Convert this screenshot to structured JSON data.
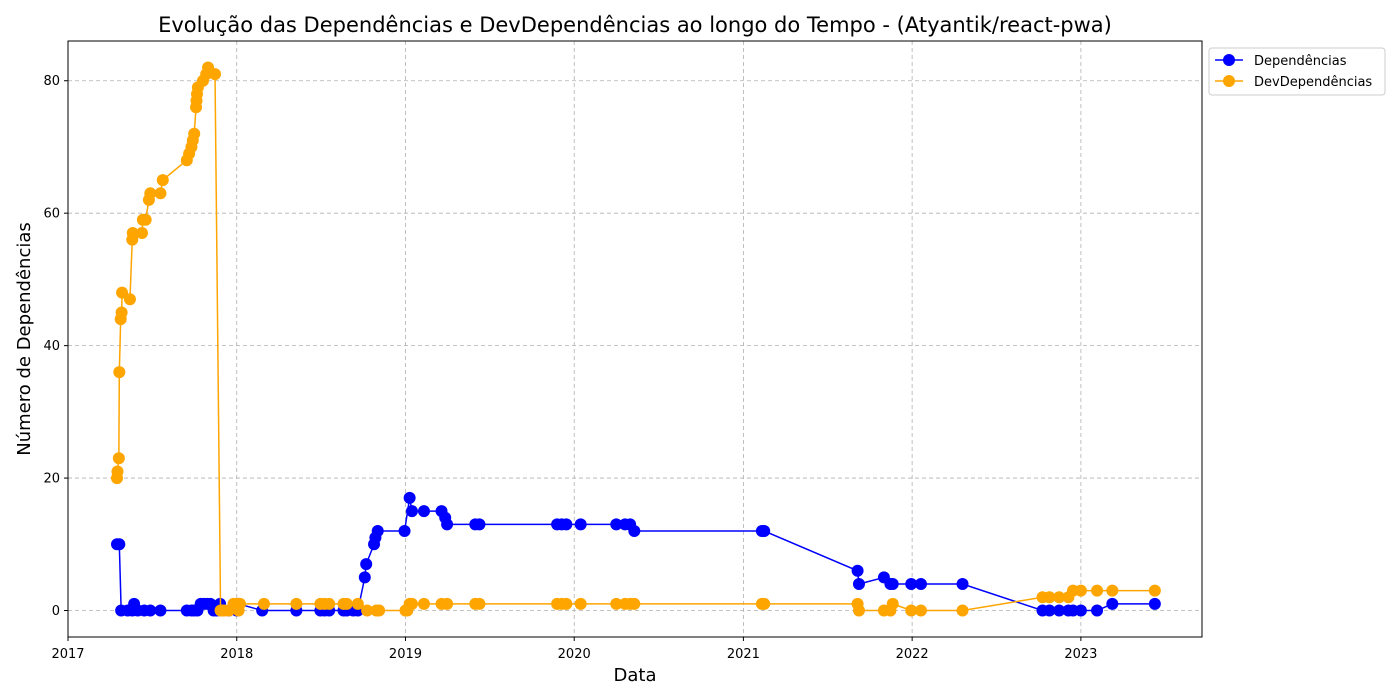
{
  "chart_data": {
    "type": "line",
    "title": "Evolução das Dependências e DevDependências ao longo do Tempo - (Atyantik/react-pwa)",
    "xlabel": "Data",
    "ylabel": "Número de Dependências",
    "xlim": [
      "2017-01-01",
      "2023-09-20"
    ],
    "ylim": [
      -4,
      86
    ],
    "x_ticks": [
      "2017",
      "2018",
      "2019",
      "2020",
      "2021",
      "2022",
      "2023"
    ],
    "y_ticks": [
      0,
      20,
      40,
      60,
      80
    ],
    "grid": true,
    "legend_position": "top-right (outside plot)",
    "series": [
      {
        "name": "Dependências",
        "color": "#0000ff",
        "points": [
          [
            "2017-04-17",
            10
          ],
          [
            "2017-04-22",
            10
          ],
          [
            "2017-04-26",
            0
          ],
          [
            "2017-05-10",
            0
          ],
          [
            "2017-05-20",
            0
          ],
          [
            "2017-05-24",
            1
          ],
          [
            "2017-06-01",
            0
          ],
          [
            "2017-06-15",
            0
          ],
          [
            "2017-06-28",
            0
          ],
          [
            "2017-07-20",
            0
          ],
          [
            "2017-09-15",
            0
          ],
          [
            "2017-09-25",
            0
          ],
          [
            "2017-10-01",
            0
          ],
          [
            "2017-10-08",
            0
          ],
          [
            "2017-10-15",
            1
          ],
          [
            "2017-10-22",
            1
          ],
          [
            "2017-10-29",
            1
          ],
          [
            "2017-11-05",
            1
          ],
          [
            "2017-11-12",
            0
          ],
          [
            "2017-11-19",
            0
          ],
          [
            "2017-11-26",
            1
          ],
          [
            "2017-12-15",
            0
          ],
          [
            "2018-01-01",
            0
          ],
          [
            "2018-01-05",
            1
          ],
          [
            "2018-02-25",
            0
          ],
          [
            "2018-05-10",
            0
          ],
          [
            "2018-07-01",
            0
          ],
          [
            "2018-07-10",
            0
          ],
          [
            "2018-07-20",
            0
          ],
          [
            "2018-08-20",
            0
          ],
          [
            "2018-08-27",
            0
          ],
          [
            "2018-09-10",
            0
          ],
          [
            "2018-09-20",
            0
          ],
          [
            "2018-10-05",
            5
          ],
          [
            "2018-10-08",
            7
          ],
          [
            "2018-10-25",
            10
          ],
          [
            "2018-10-28",
            11
          ],
          [
            "2018-11-02",
            12
          ],
          [
            "2018-12-30",
            12
          ],
          [
            "2019-01-10",
            17
          ],
          [
            "2019-01-15",
            15
          ],
          [
            "2019-02-10",
            15
          ],
          [
            "2019-03-20",
            15
          ],
          [
            "2019-03-28",
            14
          ],
          [
            "2019-04-01",
            13
          ],
          [
            "2019-06-01",
            13
          ],
          [
            "2019-06-10",
            13
          ],
          [
            "2019-11-25",
            13
          ],
          [
            "2019-12-05",
            13
          ],
          [
            "2019-12-15",
            13
          ],
          [
            "2020-01-15",
            13
          ],
          [
            "2020-04-01",
            13
          ],
          [
            "2020-04-20",
            13
          ],
          [
            "2020-05-01",
            13
          ],
          [
            "2020-05-10",
            12
          ],
          [
            "2021-02-10",
            12
          ],
          [
            "2021-02-15",
            12
          ],
          [
            "2021-09-05",
            6
          ],
          [
            "2021-09-08",
            4
          ],
          [
            "2021-11-01",
            5
          ],
          [
            "2021-11-15",
            4
          ],
          [
            "2021-11-20",
            4
          ],
          [
            "2021-12-30",
            4
          ],
          [
            "2022-01-20",
            4
          ],
          [
            "2022-04-20",
            4
          ],
          [
            "2022-10-10",
            0
          ],
          [
            "2022-10-25",
            0
          ],
          [
            "2022-11-15",
            0
          ],
          [
            "2022-12-05",
            0
          ],
          [
            "2022-12-15",
            0
          ],
          [
            "2023-01-01",
            0
          ],
          [
            "2023-02-05",
            0
          ],
          [
            "2023-03-10",
            1
          ],
          [
            "2023-06-10",
            1
          ]
        ]
      },
      {
        "name": "DevDependências",
        "color": "#ffa500",
        "points": [
          [
            "2017-04-17",
            20
          ],
          [
            "2017-04-18",
            21
          ],
          [
            "2017-04-21",
            23
          ],
          [
            "2017-04-22",
            36
          ],
          [
            "2017-04-25",
            44
          ],
          [
            "2017-04-27",
            45
          ],
          [
            "2017-04-28",
            48
          ],
          [
            "2017-05-15",
            47
          ],
          [
            "2017-05-20",
            56
          ],
          [
            "2017-05-21",
            57
          ],
          [
            "2017-06-10",
            57
          ],
          [
            "2017-06-12",
            59
          ],
          [
            "2017-06-18",
            59
          ],
          [
            "2017-06-25",
            62
          ],
          [
            "2017-06-28",
            63
          ],
          [
            "2017-07-20",
            63
          ],
          [
            "2017-07-25",
            65
          ],
          [
            "2017-09-15",
            68
          ],
          [
            "2017-09-20",
            69
          ],
          [
            "2017-09-25",
            70
          ],
          [
            "2017-09-28",
            71
          ],
          [
            "2017-10-01",
            72
          ],
          [
            "2017-10-05",
            76
          ],
          [
            "2017-10-06",
            77
          ],
          [
            "2017-10-07",
            78
          ],
          [
            "2017-10-09",
            79
          ],
          [
            "2017-10-20",
            80
          ],
          [
            "2017-10-27",
            81
          ],
          [
            "2017-10-31",
            82
          ],
          [
            "2017-11-15",
            81
          ],
          [
            "2017-11-27",
            0
          ],
          [
            "2017-12-01",
            0
          ],
          [
            "2017-12-05",
            0
          ],
          [
            "2017-12-15",
            0
          ],
          [
            "2017-12-25",
            1
          ],
          [
            "2018-01-01",
            1
          ],
          [
            "2018-01-05",
            0
          ],
          [
            "2018-01-08",
            1
          ],
          [
            "2018-03-01",
            1
          ],
          [
            "2018-05-10",
            1
          ],
          [
            "2018-07-01",
            1
          ],
          [
            "2018-07-10",
            1
          ],
          [
            "2018-07-20",
            1
          ],
          [
            "2018-08-20",
            1
          ],
          [
            "2018-08-27",
            1
          ],
          [
            "2018-09-20",
            1
          ],
          [
            "2018-10-10",
            0
          ],
          [
            "2018-10-30",
            0
          ],
          [
            "2018-11-05",
            0
          ],
          [
            "2019-01-01",
            0
          ],
          [
            "2019-01-05",
            0
          ],
          [
            "2019-01-10",
            1
          ],
          [
            "2019-01-15",
            1
          ],
          [
            "2019-02-10",
            1
          ],
          [
            "2019-03-20",
            1
          ],
          [
            "2019-04-01",
            1
          ],
          [
            "2019-06-01",
            1
          ],
          [
            "2019-06-10",
            1
          ],
          [
            "2019-11-25",
            1
          ],
          [
            "2019-12-05",
            1
          ],
          [
            "2019-12-15",
            1
          ],
          [
            "2020-01-15",
            1
          ],
          [
            "2020-04-01",
            1
          ],
          [
            "2020-04-20",
            1
          ],
          [
            "2020-05-01",
            1
          ],
          [
            "2020-05-10",
            1
          ],
          [
            "2021-02-10",
            1
          ],
          [
            "2021-02-15",
            1
          ],
          [
            "2021-09-05",
            1
          ],
          [
            "2021-09-08",
            0
          ],
          [
            "2021-11-01",
            0
          ],
          [
            "2021-11-15",
            0
          ],
          [
            "2021-11-20",
            1
          ],
          [
            "2021-12-30",
            0
          ],
          [
            "2022-01-20",
            0
          ],
          [
            "2022-04-20",
            0
          ],
          [
            "2022-10-10",
            2
          ],
          [
            "2022-10-25",
            2
          ],
          [
            "2022-11-15",
            2
          ],
          [
            "2022-12-05",
            2
          ],
          [
            "2022-12-15",
            3
          ],
          [
            "2023-01-01",
            3
          ],
          [
            "2023-02-05",
            3
          ],
          [
            "2023-03-10",
            3
          ],
          [
            "2023-06-10",
            3
          ]
        ]
      }
    ]
  }
}
